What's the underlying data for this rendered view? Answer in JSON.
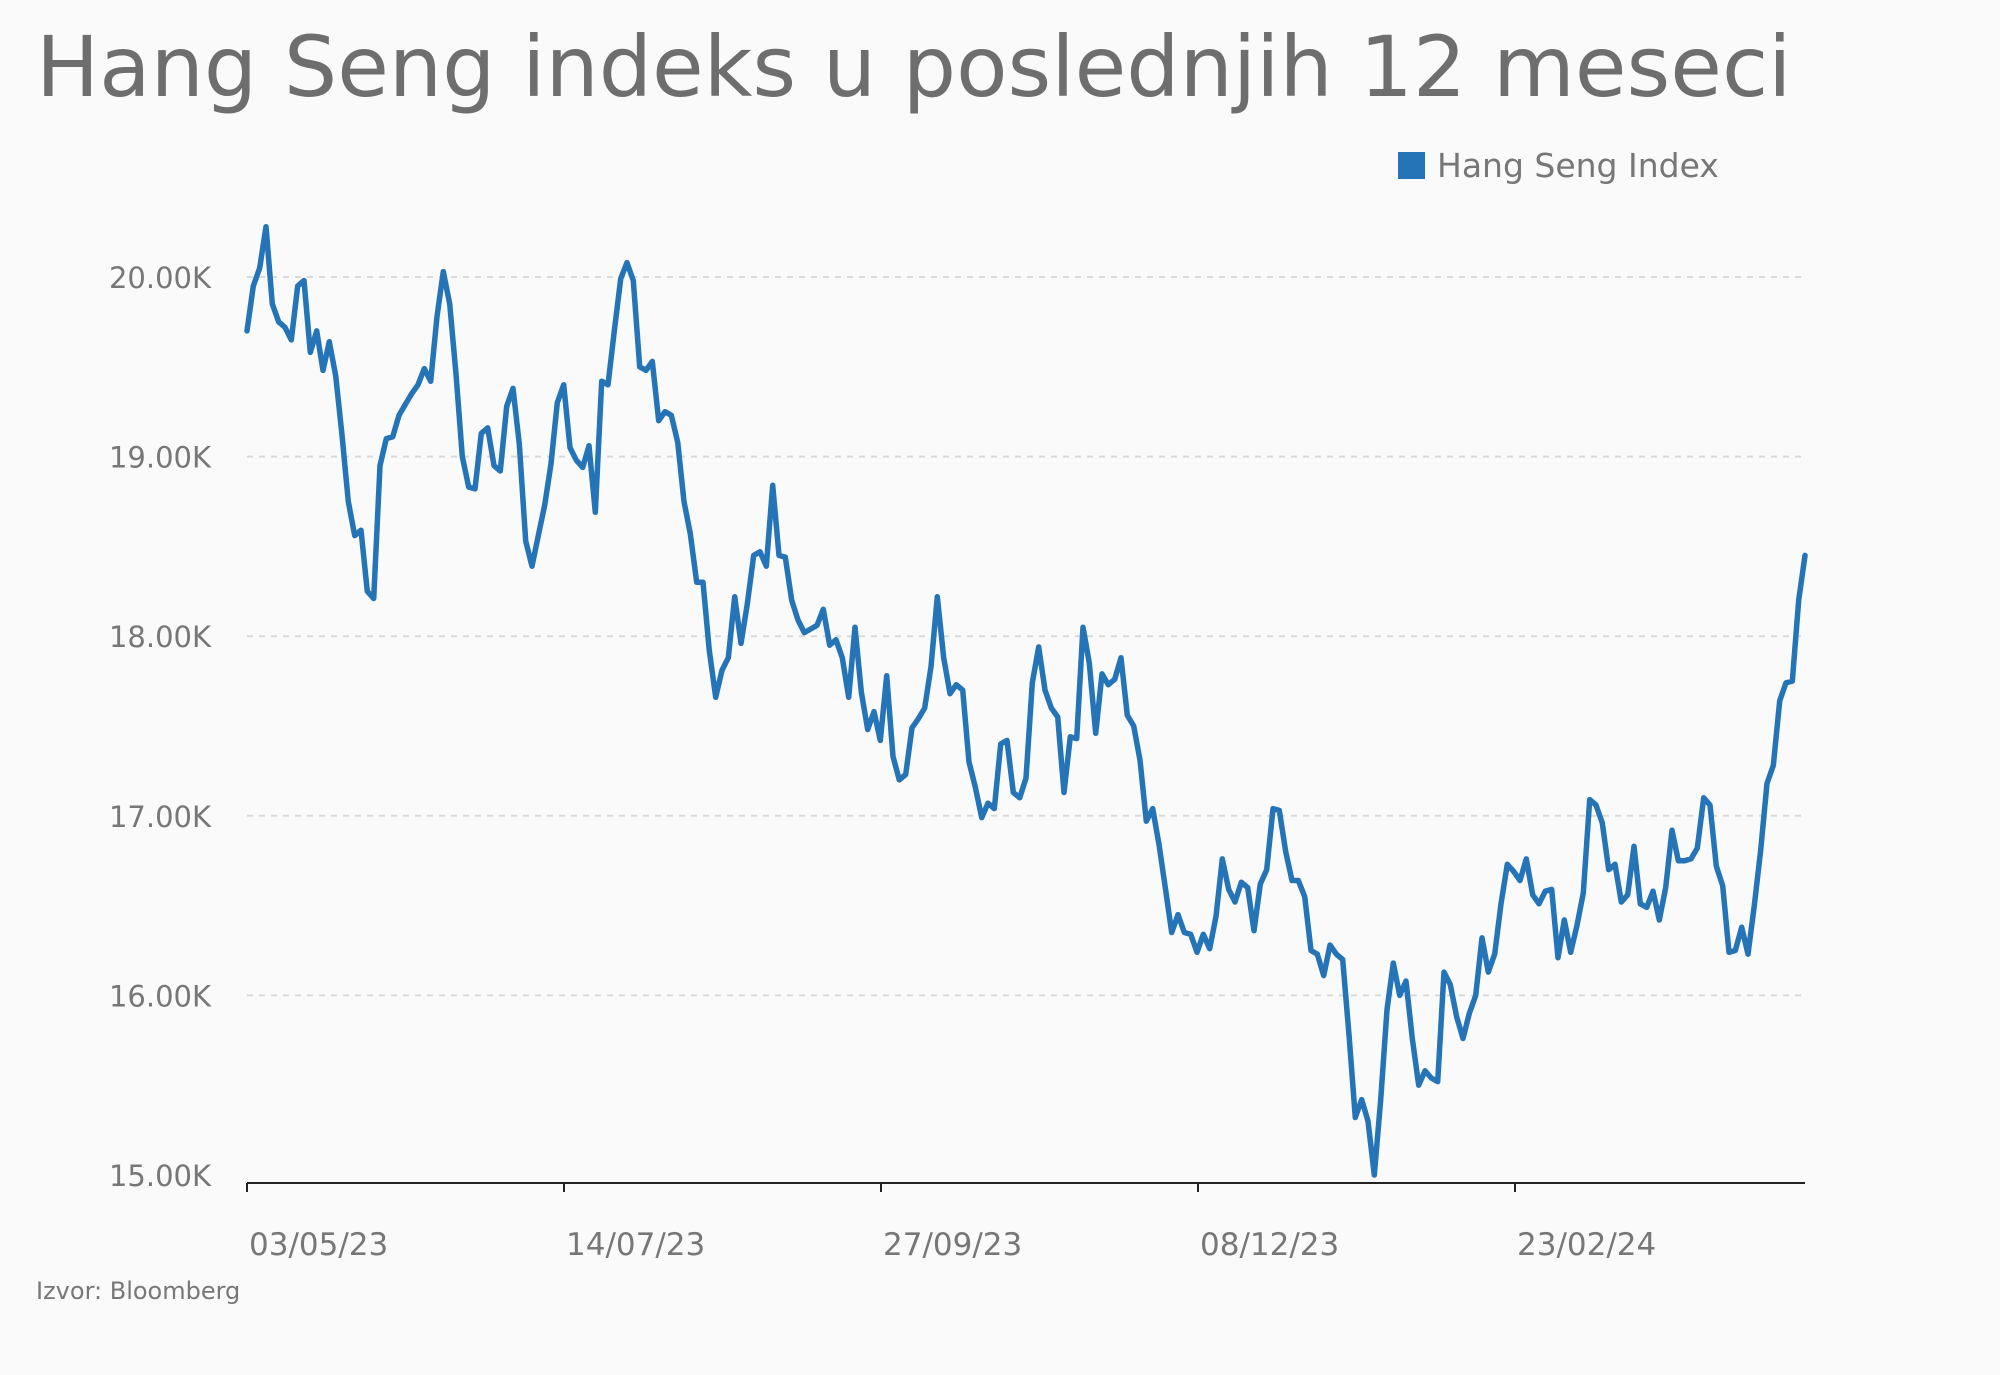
{
  "chart_data": {
    "type": "line",
    "title": "Hang Seng indeks u poslednjih 12 meseci",
    "legend": {
      "placement": "top-right",
      "entries": [
        "Hang Seng Index"
      ]
    },
    "source": "Izvor: Bloomberg",
    "xlabel": "",
    "ylabel": "",
    "x_ticks": [
      "03/05/23",
      "14/07/23",
      "27/09/23",
      "08/12/23",
      "23/02/24"
    ],
    "y_ticks": [
      "15.00K",
      "16.00K",
      "17.00K",
      "18.00K",
      "19.00K",
      "20.00K"
    ],
    "y_tick_values": [
      15000,
      16000,
      17000,
      18000,
      19000,
      20000
    ],
    "ylim": [
      15000,
      20540
    ],
    "grid": {
      "horizontal": true,
      "style": "dashed"
    },
    "colors": {
      "line": "#2474b7",
      "grid": "#d9d9d9",
      "axis": "#222222"
    },
    "series": [
      {
        "name": "Hang Seng Index",
        "values": [
          19700,
          19950,
          20050,
          20280,
          19850,
          19750,
          19720,
          19650,
          19950,
          19980,
          19580,
          19700,
          19480,
          19640,
          19450,
          19120,
          18750,
          18560,
          18590,
          18250,
          18210,
          18950,
          19100,
          19110,
          19230,
          19290,
          19350,
          19400,
          19490,
          19420,
          19780,
          20030,
          19850,
          19460,
          19000,
          18830,
          18820,
          19130,
          19160,
          18950,
          18920,
          19280,
          19380,
          19070,
          18530,
          18390,
          18560,
          18730,
          18960,
          19300,
          19400,
          19050,
          18980,
          18940,
          19060,
          18690,
          19420,
          19400,
          19700,
          19990,
          20080,
          19980,
          19500,
          19480,
          19530,
          19200,
          19250,
          19230,
          19080,
          18750,
          18570,
          18300,
          18300,
          17920,
          17660,
          17810,
          17880,
          18220,
          17960,
          18180,
          18450,
          18470,
          18390,
          18840,
          18450,
          18440,
          18200,
          18090,
          18020,
          18040,
          18060,
          18150,
          17950,
          17980,
          17880,
          17660,
          18050,
          17690,
          17480,
          17580,
          17420,
          17780,
          17330,
          17200,
          17230,
          17490,
          17540,
          17600,
          17830,
          18220,
          17880,
          17680,
          17730,
          17700,
          17300,
          17160,
          16990,
          17070,
          17040,
          17400,
          17420,
          17130,
          17100,
          17210,
          17740,
          17940,
          17700,
          17600,
          17550,
          17130,
          17440,
          17430,
          18050,
          17850,
          17460,
          17790,
          17730,
          17760,
          17880,
          17560,
          17500,
          17310,
          16970,
          17040,
          16840,
          16600,
          16350,
          16450,
          16350,
          16340,
          16240,
          16340,
          16260,
          16440,
          16760,
          16590,
          16520,
          16630,
          16600,
          16360,
          16620,
          16700,
          17040,
          17030,
          16800,
          16640,
          16640,
          16550,
          16250,
          16230,
          16110,
          16280,
          16230,
          16200,
          15780,
          15320,
          15420,
          15300,
          15000,
          15420,
          15920,
          16180,
          16000,
          16080,
          15760,
          15500,
          15580,
          15540,
          15520,
          16130,
          16060,
          15880,
          15760,
          15900,
          16000,
          16320,
          16130,
          16230,
          16510,
          16730,
          16690,
          16640,
          16760,
          16560,
          16510,
          16580,
          16590,
          16210,
          16420,
          16240,
          16390,
          16570,
          17090,
          17060,
          16960,
          16700,
          16730,
          16520,
          16560,
          16830,
          16510,
          16490,
          16580,
          16420,
          16600,
          16920,
          16750,
          16750,
          16760,
          16820,
          17100,
          17060,
          16720,
          16610,
          16240,
          16250,
          16380,
          16230,
          16500,
          16810,
          17180,
          17280,
          17640,
          17740,
          17750,
          18200,
          18450
        ]
      }
    ]
  }
}
